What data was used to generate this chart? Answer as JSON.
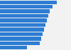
{
  "values": [
    20,
    18.5,
    17.5,
    17.0,
    16.5,
    16.0,
    15.5,
    15.0,
    14.5,
    14.0,
    9.5
  ],
  "bar_color": "#2d7dd2",
  "background_color": "#f2f2f2",
  "bar_background": "#f2f2f2",
  "xlim": [
    0,
    21.5
  ],
  "n_bars": 11,
  "bar_height": 0.82
}
